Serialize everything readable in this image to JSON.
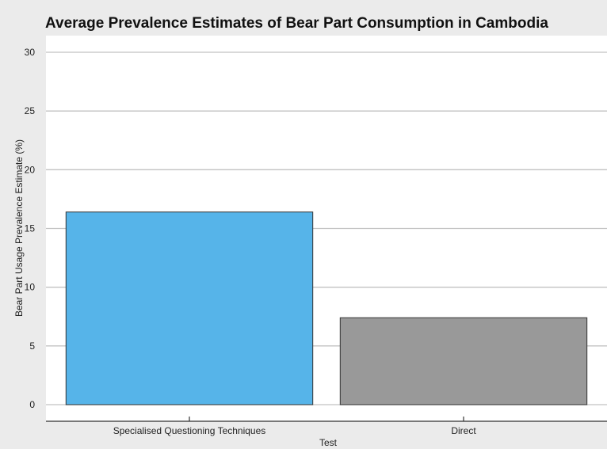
{
  "chart_data": {
    "type": "bar",
    "title": "Average Prevalence Estimates of Bear Part Consumption in Cambodia",
    "xlabel": "Test",
    "ylabel": "Bear Part Usage Prevalence Estimate (%)",
    "categories": [
      "Specialised Questioning Techniques",
      "Direct"
    ],
    "values": [
      16.4,
      7.4
    ],
    "colors": [
      "#56b4e9",
      "#999999"
    ],
    "ylim": [
      0,
      30
    ],
    "yticks": [
      0,
      5,
      10,
      15,
      20,
      25,
      30
    ],
    "grid": true,
    "legend": "none"
  }
}
